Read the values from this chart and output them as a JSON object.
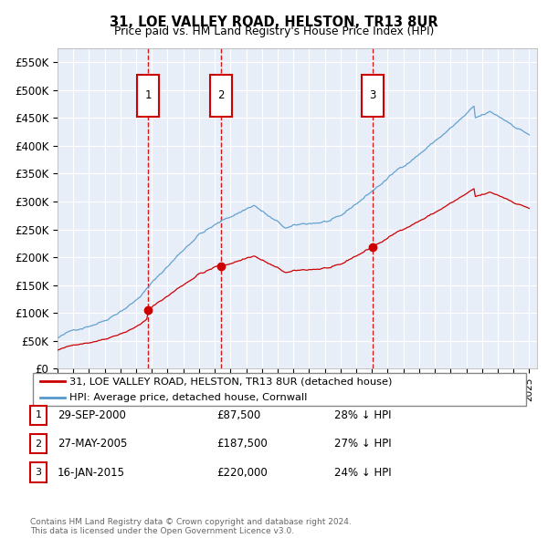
{
  "title": "31, LOE VALLEY ROAD, HELSTON, TR13 8UR",
  "subtitle": "Price paid vs. HM Land Registry's House Price Index (HPI)",
  "ylim": [
    0,
    575000
  ],
  "yticks": [
    0,
    50000,
    100000,
    150000,
    200000,
    250000,
    300000,
    350000,
    400000,
    450000,
    500000,
    550000
  ],
  "ytick_labels": [
    "£0",
    "£50K",
    "£100K",
    "£150K",
    "£200K",
    "£250K",
    "£300K",
    "£350K",
    "£400K",
    "£450K",
    "£500K",
    "£550K"
  ],
  "sale_dates": [
    2000.75,
    2005.41,
    2015.04
  ],
  "sale_prices": [
    87500,
    187500,
    220000
  ],
  "sale_labels": [
    "1",
    "2",
    "3"
  ],
  "red_line_color": "#cc0000",
  "hpi_line_color": "#5599cc",
  "vline_color": "#cc0000",
  "plot_bg_color": "#e8eef8",
  "legend_label_red": "31, LOE VALLEY ROAD, HELSTON, TR13 8UR (detached house)",
  "legend_label_blue": "HPI: Average price, detached house, Cornwall",
  "table_rows": [
    {
      "num": "1",
      "date": "29-SEP-2000",
      "price": "£87,500",
      "pct": "28% ↓ HPI"
    },
    {
      "num": "2",
      "date": "27-MAY-2005",
      "price": "£187,500",
      "pct": "27% ↓ HPI"
    },
    {
      "num": "3",
      "date": "16-JAN-2015",
      "price": "£220,000",
      "pct": "24% ↓ HPI"
    }
  ],
  "footer": "Contains HM Land Registry data © Crown copyright and database right 2024.\nThis data is licensed under the Open Government Licence v3.0.",
  "xmin": 1995.0,
  "xmax": 2025.5
}
